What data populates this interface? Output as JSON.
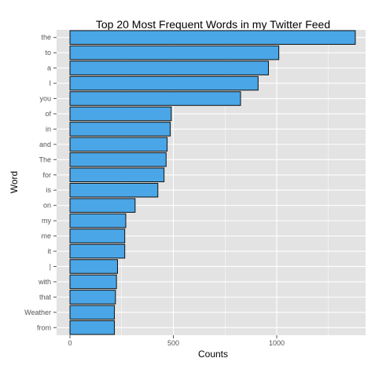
{
  "chart_data": {
    "type": "bar",
    "orientation": "horizontal",
    "title": "Top 20 Most Frequent Words in my Twitter Feed",
    "xlabel": "Counts",
    "ylabel": "Word",
    "categories": [
      "the",
      "to",
      "a",
      "I",
      "you",
      "of",
      "in",
      "and",
      "The",
      "for",
      "is",
      "on",
      "my",
      "me",
      "it",
      "|",
      "with",
      "that",
      "Weather",
      "from"
    ],
    "values": [
      1380,
      1010,
      960,
      910,
      825,
      490,
      485,
      470,
      465,
      455,
      425,
      315,
      270,
      265,
      265,
      230,
      225,
      220,
      215,
      215
    ],
    "xlim": [
      0,
      1450
    ],
    "xticks": [
      0,
      500,
      1000
    ],
    "grid": true,
    "colors": {
      "bar_fill": "#4aa6e6",
      "bar_stroke": "#111111",
      "panel_bg": "#e3e3e3",
      "grid": "#ffffff"
    }
  }
}
